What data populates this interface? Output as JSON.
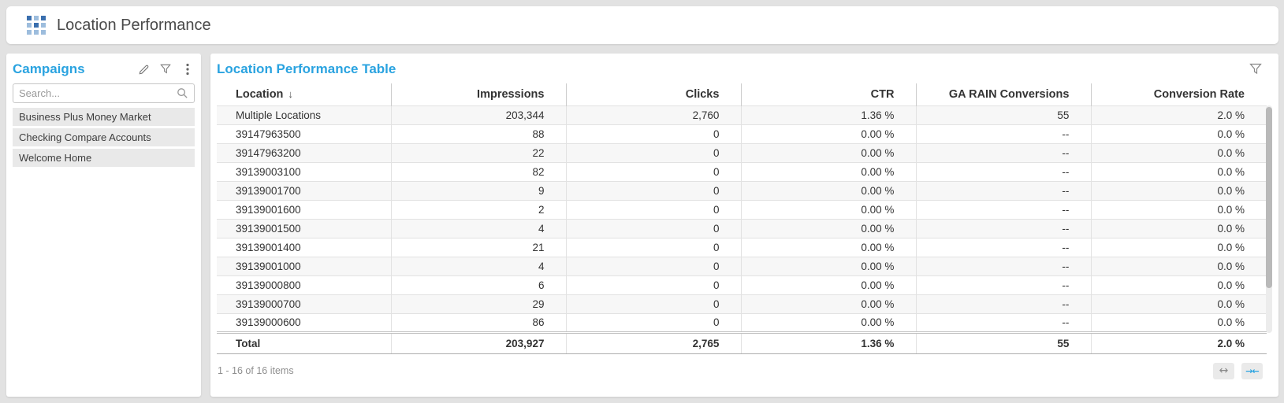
{
  "colors": {
    "accent": "#2aa3e0",
    "grid_icon_dark": "#3a6fae",
    "grid_icon_light": "#9dbddd"
  },
  "header": {
    "title": "Location Performance"
  },
  "sidebar": {
    "title": "Campaigns",
    "search_placeholder": "Search...",
    "items": [
      "Business Plus Money Market",
      "Checking Compare Accounts",
      "Welcome Home"
    ]
  },
  "table": {
    "title": "Location Performance Table",
    "columns": [
      "Location",
      "Impressions",
      "Clicks",
      "CTR",
      "GA RAIN Conversions",
      "Conversion Rate"
    ],
    "sort_column": "Location",
    "sort_indicator": "↓",
    "rows": [
      [
        "Multiple Locations",
        "203,344",
        "2,760",
        "1.36 %",
        "55",
        "2.0 %"
      ],
      [
        "39147963500",
        "88",
        "0",
        "0.00 %",
        "--",
        "0.0 %"
      ],
      [
        "39147963200",
        "22",
        "0",
        "0.00 %",
        "--",
        "0.0 %"
      ],
      [
        "39139003100",
        "82",
        "0",
        "0.00 %",
        "--",
        "0.0 %"
      ],
      [
        "39139001700",
        "9",
        "0",
        "0.00 %",
        "--",
        "0.0 %"
      ],
      [
        "39139001600",
        "2",
        "0",
        "0.00 %",
        "--",
        "0.0 %"
      ],
      [
        "39139001500",
        "4",
        "0",
        "0.00 %",
        "--",
        "0.0 %"
      ],
      [
        "39139001400",
        "21",
        "0",
        "0.00 %",
        "--",
        "0.0 %"
      ],
      [
        "39139001000",
        "4",
        "0",
        "0.00 %",
        "--",
        "0.0 %"
      ],
      [
        "39139000800",
        "6",
        "0",
        "0.00 %",
        "--",
        "0.0 %"
      ],
      [
        "39139000700",
        "29",
        "0",
        "0.00 %",
        "--",
        "0.0 %"
      ],
      [
        "39139000600",
        "86",
        "0",
        "0.00 %",
        "--",
        "0.0 %"
      ]
    ],
    "total": [
      "Total",
      "203,927",
      "2,765",
      "1.36 %",
      "55",
      "2.0 %"
    ],
    "footer": {
      "summary": "1 - 16 of 16 items",
      "expand_icon": "↔",
      "collapse_icon": "→←"
    }
  }
}
